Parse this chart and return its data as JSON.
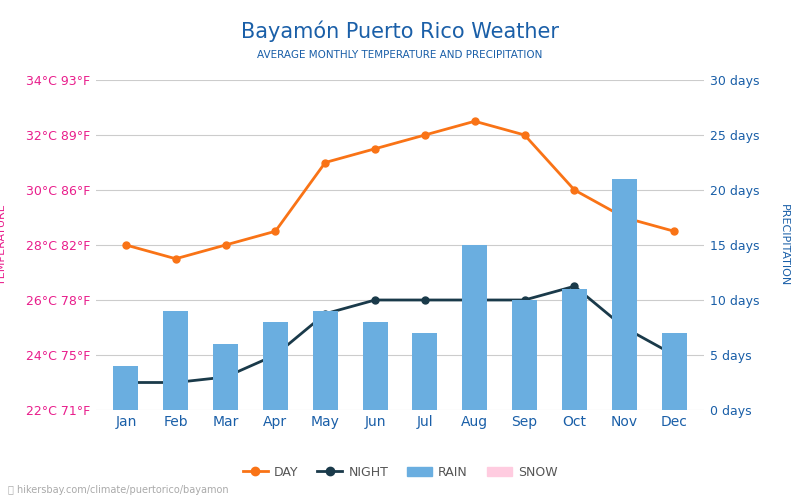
{
  "title": "Bayamón Puerto Rico Weather",
  "subtitle": "AVERAGE MONTHLY TEMPERATURE AND PRECIPITATION",
  "months": [
    "Jan",
    "Feb",
    "Mar",
    "Apr",
    "May",
    "Jun",
    "Jul",
    "Aug",
    "Sep",
    "Oct",
    "Nov",
    "Dec"
  ],
  "day_temps_c": [
    28.0,
    27.5,
    28.0,
    28.5,
    31.0,
    31.5,
    32.0,
    32.5,
    32.0,
    30.0,
    29.0,
    28.5
  ],
  "night_temps_c": [
    23.0,
    23.0,
    23.2,
    24.0,
    25.5,
    26.0,
    26.0,
    26.0,
    26.0,
    26.5,
    25.0,
    24.0
  ],
  "rain_days": [
    4,
    9,
    6,
    8,
    9,
    8,
    7,
    15,
    10,
    11,
    21,
    7
  ],
  "temp_left_labels": [
    "22°C 71°F",
    "24°C 75°F",
    "26°C 78°F",
    "28°C 82°F",
    "30°C 86°F",
    "32°C 89°F",
    "34°C 93°F"
  ],
  "temp_left_values": [
    22,
    24,
    26,
    28,
    30,
    32,
    34
  ],
  "precip_right_labels": [
    "0 days",
    "5 days",
    "10 days",
    "15 days",
    "20 days",
    "25 days",
    "30 days"
  ],
  "precip_right_values": [
    0,
    5,
    10,
    15,
    20,
    25,
    30
  ],
  "day_color": "#f97316",
  "night_color": "#1a3a4a",
  "bar_color": "#6aaee0",
  "title_color": "#1a5fa8",
  "subtitle_color": "#1a5fa8",
  "left_label_color": "#e91e8c",
  "right_label_color": "#1a5fa8",
  "temp_axis_label_color": "#e91e8c",
  "precip_axis_label_color": "#1a5fa8",
  "background_color": "#ffffff",
  "watermark": "hikersbay.com/climate/puertorico/bayamon",
  "temp_min": 22,
  "temp_max": 34,
  "precip_min": 0,
  "precip_max": 30,
  "legend_label_color": "#555555"
}
